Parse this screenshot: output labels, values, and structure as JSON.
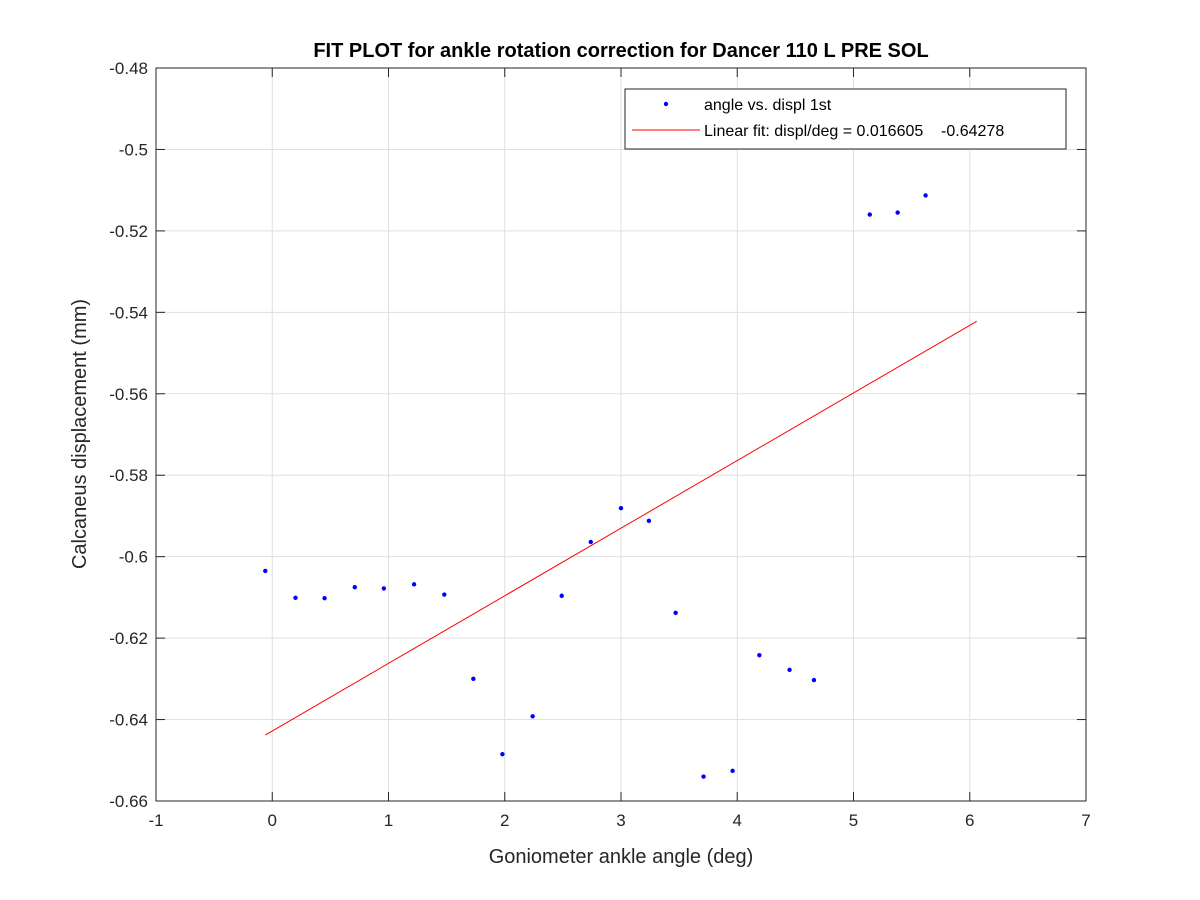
{
  "chart_data": {
    "type": "scatter",
    "title": "FIT PLOT for ankle rotation correction for Dancer 110 L PRE SOL",
    "xlabel": "Goniometer ankle angle (deg)",
    "ylabel": "Calcaneus displacement (mm)",
    "xlim": [
      -1,
      7
    ],
    "ylim": [
      -0.66,
      -0.48
    ],
    "xticks": [
      -1,
      0,
      1,
      2,
      3,
      4,
      5,
      6,
      7
    ],
    "yticks": [
      -0.66,
      -0.64,
      -0.62,
      -0.6,
      -0.58,
      -0.56,
      -0.54,
      -0.52,
      -0.5,
      -0.48
    ],
    "xtick_labels": [
      "-1",
      "0",
      "1",
      "2",
      "3",
      "4",
      "5",
      "6",
      "7"
    ],
    "ytick_labels": [
      "-0.66",
      "-0.64",
      "-0.62",
      "-0.6",
      "-0.58",
      "-0.56",
      "-0.54",
      "-0.52",
      "-0.5",
      "-0.48"
    ],
    "grid": true,
    "legend_position": "top-right",
    "series": [
      {
        "name": "angle vs. displ 1st",
        "kind": "scatter",
        "color": "#0000ff",
        "x": [
          -0.06,
          0.2,
          0.45,
          0.71,
          0.96,
          1.22,
          1.48,
          1.73,
          1.98,
          2.24,
          2.49,
          2.74,
          3.0,
          3.24,
          3.47,
          3.71,
          3.96,
          4.19,
          4.45,
          4.66,
          5.14,
          5.38,
          5.62
        ],
        "y": [
          -0.6035,
          -0.6101,
          -0.6102,
          -0.6075,
          -0.6078,
          -0.6068,
          -0.6093,
          -0.63,
          -0.6485,
          -0.6392,
          -0.6096,
          -0.5964,
          -0.5881,
          -0.5912,
          -0.6138,
          -0.654,
          -0.6526,
          -0.6242,
          -0.6278,
          -0.6303,
          -0.516,
          -0.5155,
          -0.5113
        ]
      },
      {
        "name": "Linear fit: displ/deg = 0.016605    -0.64278",
        "kind": "line",
        "color": "#ff0000",
        "x": [
          -0.06,
          6.06
        ],
        "y": [
          -0.6438,
          -0.5422
        ]
      }
    ]
  }
}
